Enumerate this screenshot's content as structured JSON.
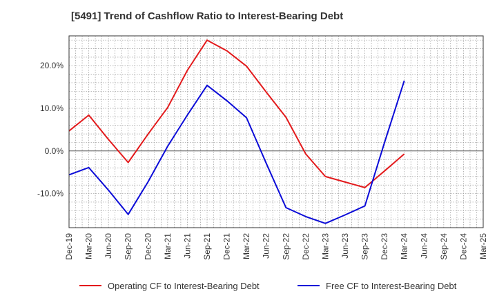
{
  "chart_data": {
    "type": "line",
    "title": "[5491]  Trend of Cashflow Ratio to Interest-Bearing Debt",
    "xlabel": "",
    "ylabel": "",
    "categories": [
      "Dec-19",
      "Mar-20",
      "Jun-20",
      "Sep-20",
      "Dec-20",
      "Mar-21",
      "Jun-21",
      "Sep-21",
      "Dec-21",
      "Mar-22",
      "Jun-22",
      "Sep-22",
      "Dec-22",
      "Mar-23",
      "Jun-23",
      "Sep-23",
      "Dec-23",
      "Mar-24",
      "Jun-24",
      "Sep-24",
      "Dec-24",
      "Mar-25"
    ],
    "ylim": [
      -18,
      27
    ],
    "yticks": [
      -10,
      0,
      10,
      20
    ],
    "ytick_labels": [
      "-10.0%",
      "0.0%",
      "10.0%",
      "20.0%"
    ],
    "grid": true,
    "legend_position": "bottom",
    "series": [
      {
        "name": "Operating CF to Interest-Bearing Debt",
        "color": "#e31a1c",
        "values": [
          4.7,
          8.4,
          2.7,
          -2.7,
          3.9,
          10.2,
          18.9,
          26.0,
          23.5,
          19.9,
          13.8,
          7.9,
          -0.7,
          -6.0,
          -7.3,
          -8.6,
          -4.7,
          -0.7,
          null,
          null,
          null,
          null
        ]
      },
      {
        "name": "Free CF to Interest-Bearing Debt",
        "color": "#0b0bd8",
        "values": [
          -5.6,
          -3.9,
          -9.2,
          -14.9,
          -7.3,
          1.1,
          8.4,
          15.4,
          11.8,
          7.8,
          -2.9,
          -13.3,
          -15.4,
          -17.0,
          -15.0,
          -12.9,
          2.0,
          16.5,
          null,
          null,
          null,
          null
        ]
      }
    ]
  }
}
